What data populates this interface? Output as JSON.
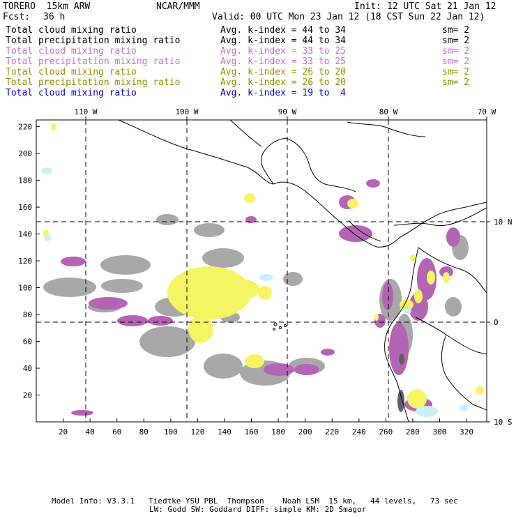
{
  "header": {
    "model": "TORERO  15km ARW",
    "org": "NCAR/MMM",
    "init": "Init: 12 UTC Sat 21 Jan 12",
    "fcst_label": "Fcst:",
    "fcst_value": "36 h",
    "valid": "Valid: 00 UTC Mon 23 Jan 12 (18 CST Sun 22 Jan 12)"
  },
  "legend": [
    {
      "field": "Total cloud mixing ratio",
      "kindex": "Avg. k-index = 44 to 34",
      "sm": "sm= 2",
      "color": "#000000"
    },
    {
      "field": "Total precipitation mixing ratio",
      "kindex": "Avg. k-index = 44 to 34",
      "sm": "sm= 2",
      "color": "#000000"
    },
    {
      "field": "Total cloud mixing ratio",
      "kindex": "Avg. k-index = 33 to 25",
      "sm": "sm= 2",
      "color": "#c070c8"
    },
    {
      "field": "Total precipitation mixing ratio",
      "kindex": "Avg. k-index = 33 to 25",
      "sm": "sm= 2",
      "color": "#c070c8"
    },
    {
      "field": "Total cloud mixing ratio",
      "kindex": "Avg. k-index = 26 to 20",
      "sm": "sm= 2",
      "color": "#909000"
    },
    {
      "field": "Total precipitation mixing ratio",
      "kindex": "Avg. k-index = 26 to 20",
      "sm": "sm= 2",
      "color": "#909000"
    },
    {
      "field": "Total cloud mixing ratio",
      "kindex": "Avg. k-index = 19 to  4",
      "sm": "",
      "color": "#0000d0"
    }
  ],
  "axes": {
    "lon_labels": [
      "110 W",
      "100 W",
      "90 W",
      "80 W",
      "70 W"
    ],
    "lat_labels": [
      "10 N",
      "0",
      "10 S"
    ],
    "x_ticks": [
      "20",
      "40",
      "60",
      "80",
      "100",
      "120",
      "140",
      "160",
      "180",
      "200",
      "220",
      "240",
      "260",
      "280",
      "300",
      "320"
    ],
    "y_ticks": [
      "20",
      "40",
      "60",
      "80",
      "100",
      "120",
      "140",
      "160",
      "180",
      "200",
      "220"
    ]
  },
  "field_colors": {
    "gray": "#a8a8a8",
    "purple": "#b464b4",
    "yellow": "#f4f464",
    "lightblue": "#c8f0f8",
    "darkgray": "#606060"
  },
  "footer": {
    "line1": "Model Info: V3.3.1   Tiedtke YSU PBL  Thompson    Noah LSM  15 km,   44 levels,   73 sec",
    "line2": "LW: Godd SW: Goddard DIFF: simple KM: 2D Smagor"
  }
}
